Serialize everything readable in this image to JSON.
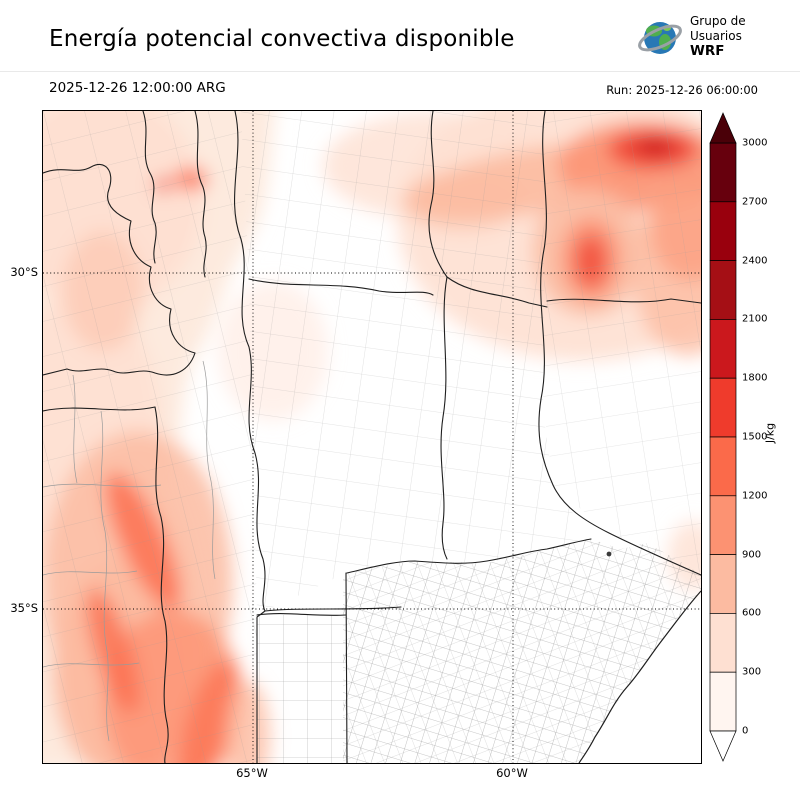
{
  "header": {
    "title": "Energía potencial convectiva disponible",
    "valid_time": "2025-12-26 12:00:00 ARG",
    "run_label": "Run: 2025-12-26 06:00:00"
  },
  "logo": {
    "line1": "Grupo de",
    "line2": "Usuarios",
    "line3": "WRF"
  },
  "axes": {
    "lat_ticks": [
      {
        "label": "30°S"
      },
      {
        "label": "35°S"
      }
    ],
    "lon_ticks": [
      {
        "label": "65°W"
      },
      {
        "label": "60°W"
      }
    ]
  },
  "colorbar": {
    "unit": "J/kg",
    "tick_labels": [
      "3000",
      "2700",
      "2400",
      "2100",
      "1800",
      "1500",
      "1200",
      "900",
      "600",
      "300",
      "0"
    ],
    "segment_colors_top_to_bottom": [
      "#67000d",
      "#99000d",
      "#a50f15",
      "#cb181d",
      "#ef3b2c",
      "#fb6a4a",
      "#fc9272",
      "#fcbba1",
      "#fee0d2",
      "#fff5f0"
    ],
    "over_arrow_color": "#4a0008",
    "under_arrow_color": "#ffffff"
  },
  "chart_data": {
    "type": "heatmap",
    "title": "Energía potencial convectiva disponible",
    "units": "J/kg",
    "levels": [
      0,
      300,
      600,
      900,
      1200,
      1500,
      1800,
      2100,
      2400,
      2700,
      3000
    ],
    "lat_gridlines": [
      "30°S",
      "35°S"
    ],
    "lon_gridlines": [
      "65°W",
      "60°W"
    ],
    "legend_position": "right"
  }
}
